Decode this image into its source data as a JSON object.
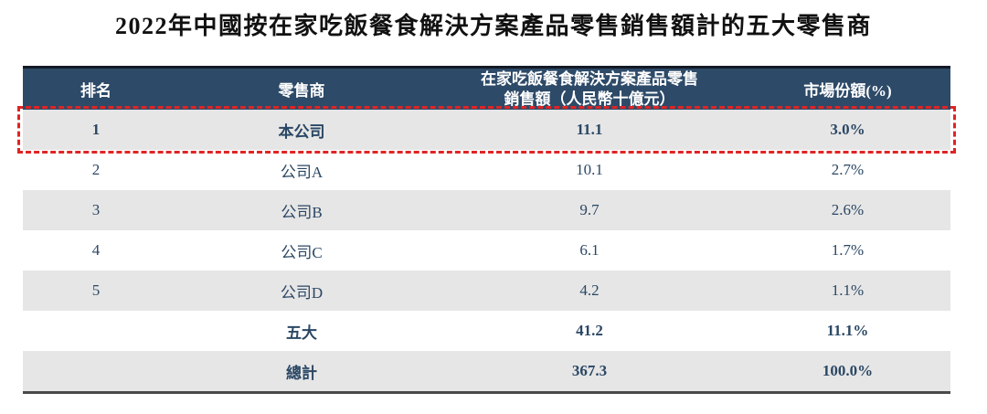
{
  "title": "2022年中國按在家吃飯餐食解決方案產品零售銷售額計的五大零售商",
  "table": {
    "headers": {
      "rank": "排名",
      "retailer": "零售商",
      "sales": "在家吃飯餐食解決方案產品零售銷售額（人民幣十億元）",
      "share": "市場份額(%)"
    },
    "rows": [
      {
        "rank": "1",
        "retailer": "本公司",
        "sales": "11.1",
        "share": "3.0%"
      },
      {
        "rank": "2",
        "retailer": "公司A",
        "sales": "10.1",
        "share": "2.7%"
      },
      {
        "rank": "3",
        "retailer": "公司B",
        "sales": "9.7",
        "share": "2.6%"
      },
      {
        "rank": "4",
        "retailer": "公司C",
        "sales": "6.1",
        "share": "1.7%"
      },
      {
        "rank": "5",
        "retailer": "公司D",
        "sales": "4.2",
        "share": "1.1%"
      },
      {
        "rank": "",
        "retailer": "五大",
        "sales": "41.2",
        "share": "11.1%"
      },
      {
        "rank": "",
        "retailer": "總計",
        "sales": "367.3",
        "share": "100.0%"
      }
    ]
  },
  "colors": {
    "header_bg": "#2d4a68",
    "header_top_border": "#131a26",
    "row_alt_bg": "#e6e6e6",
    "data_text": "#2b4764",
    "highlight_border": "#e02424",
    "bottom_border": "#4a4a4a"
  },
  "chart_data": {
    "type": "table",
    "title": "2022年中國按在家吃飯餐食解決方案產品零售銷售額計的五大零售商",
    "columns": [
      "排名",
      "零售商",
      "在家吃飯餐食解決方案產品零售銷售額（人民幣十億元）",
      "市場份額(%)"
    ],
    "rows": [
      [
        "1",
        "本公司",
        11.1,
        "3.0%"
      ],
      [
        "2",
        "公司A",
        10.1,
        "2.7%"
      ],
      [
        "3",
        "公司B",
        9.7,
        "2.6%"
      ],
      [
        "4",
        "公司C",
        6.1,
        "1.7%"
      ],
      [
        "5",
        "公司D",
        4.2,
        "1.1%"
      ],
      [
        "",
        "五大",
        41.2,
        "11.1%"
      ],
      [
        "",
        "總計",
        367.3,
        "100.0%"
      ]
    ],
    "highlighted_row": 0
  }
}
